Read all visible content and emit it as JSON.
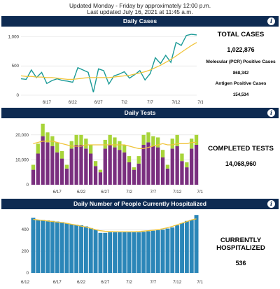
{
  "header": {
    "note_line1": "Updated Monday - Friday by approximately 12:00 p.m.",
    "note_line2": "Last updated July 16, 2021 at 11:45 a.m."
  },
  "colors": {
    "header_bg": "#0e2b52",
    "line_teal": "#1a9a96",
    "avg_yellow": "#f0c43a",
    "bar_purple": "#7a2f7f",
    "bar_green": "#a7d439",
    "bar_blue": "#2b86b8"
  },
  "panels": {
    "cases": {
      "title": "Daily Cases",
      "info_icon": "info-icon",
      "total_label": "TOTAL CASES",
      "total_value": "1,022,876",
      "pcr_label": "Molecular (PCR) Positive Cases",
      "pcr_value": "868,342",
      "antigen_label": "Antigen Positive Cases",
      "antigen_value": "154,534"
    },
    "tests": {
      "title": "Daily Tests",
      "info_icon": "info-icon",
      "label": "COMPLETED TESTS",
      "value": "14,068,960"
    },
    "hosp": {
      "title": "Daily Number of People Currently Hospitalized",
      "info_icon": "info-icon",
      "label_line1": "CURRENTLY",
      "label_line2": "HOSPITALIZED",
      "value": "536"
    }
  },
  "chart_data": [
    {
      "type": "line",
      "x": [
        "6/12",
        "6/13",
        "6/14",
        "6/15",
        "6/16",
        "6/17",
        "6/18",
        "6/19",
        "6/20",
        "6/21",
        "6/22",
        "6/23",
        "6/24",
        "6/25",
        "6/26",
        "6/27",
        "6/28",
        "6/29",
        "6/30",
        "7/1",
        "7/2",
        "7/3",
        "7/4",
        "7/5",
        "7/6",
        "7/7",
        "7/8",
        "7/9",
        "7/10",
        "7/11",
        "7/12",
        "7/13",
        "7/14",
        "7/15",
        "7/16"
      ],
      "series": [
        {
          "values": [
            280,
            270,
            430,
            300,
            390,
            200,
            250,
            280,
            250,
            240,
            220,
            470,
            430,
            390,
            50,
            450,
            420,
            190,
            330,
            360,
            400,
            290,
            350,
            420,
            260,
            370,
            640,
            540,
            680,
            560,
            900,
            850,
            1020,
            1040,
            1030
          ]
        },
        {
          "values": [
            330,
            320,
            320,
            310,
            310,
            300,
            300,
            290,
            280,
            270,
            270,
            280,
            290,
            300,
            300,
            300,
            300,
            300,
            310,
            320,
            330,
            340,
            360,
            380,
            400,
            430,
            470,
            510,
            560,
            610,
            670,
            730,
            790,
            850,
            900
          ]
        }
      ],
      "x_ticks": [
        "6/17",
        "6/22",
        "6/27",
        "7/2",
        "7/7",
        "7/12",
        "7/17"
      ],
      "y_ticks": [
        0,
        500,
        1000
      ],
      "ylim": [
        0,
        1100
      ]
    },
    {
      "type": "bar",
      "x": [
        "6/12",
        "6/13",
        "6/14",
        "6/15",
        "6/16",
        "6/17",
        "6/18",
        "6/19",
        "6/20",
        "6/21",
        "6/22",
        "6/23",
        "6/24",
        "6/25",
        "6/26",
        "6/27",
        "6/28",
        "6/29",
        "6/30",
        "7/1",
        "7/2",
        "7/3",
        "7/4",
        "7/5",
        "7/6",
        "7/7",
        "7/8",
        "7/9",
        "7/10",
        "7/11",
        "7/12",
        "7/13",
        "7/14",
        "7/15",
        "7/16"
      ],
      "series": [
        {
          "values": [
            6000,
            12500,
            19500,
            17000,
            15500,
            13000,
            10500,
            6500,
            14500,
            16000,
            16000,
            14500,
            12500,
            7500,
            5000,
            14500,
            16000,
            15000,
            14000,
            13000,
            9000,
            6000,
            8500,
            16000,
            17000,
            15500,
            15000,
            11000,
            6500,
            14500,
            15500,
            9500,
            7000,
            14500,
            16000
          ]
        },
        {
          "values": [
            2000,
            4000,
            5000,
            4000,
            4000,
            4000,
            3000,
            1500,
            3000,
            4000,
            4000,
            4000,
            3500,
            2000,
            1000,
            3500,
            4000,
            4000,
            3500,
            3000,
            2500,
            1000,
            3000,
            4000,
            4000,
            4000,
            4000,
            3000,
            1500,
            4000,
            4500,
            3000,
            2000,
            4000,
            4000
          ]
        },
        {
          "values": [
            16500,
            17000,
            17500,
            17500,
            17500,
            17000,
            16500,
            16000,
            15500,
            15500,
            15500,
            16000,
            16000,
            16000,
            16000,
            16000,
            16000,
            16000,
            16000,
            16000,
            15500,
            15000,
            14500,
            14500,
            15000,
            15500,
            16000,
            16500,
            16000,
            16000,
            16500,
            16500,
            16500,
            17000,
            17000
          ]
        }
      ],
      "x_ticks": [
        "6/17",
        "6/22",
        "6/27",
        "7/2",
        "7/7",
        "7/12",
        "7/17"
      ],
      "y_ticks": [
        0,
        10000,
        20000
      ],
      "y_tick_labels": [
        "0",
        "10,000",
        "20,000"
      ],
      "ylim": [
        0,
        25000
      ]
    },
    {
      "type": "bar",
      "x": [
        "6/12",
        "6/13",
        "6/14",
        "6/15",
        "6/16",
        "6/17",
        "6/18",
        "6/19",
        "6/20",
        "6/21",
        "6/22",
        "6/23",
        "6/24",
        "6/25",
        "6/26",
        "6/27",
        "6/28",
        "6/29",
        "6/30",
        "7/1",
        "7/2",
        "7/3",
        "7/4",
        "7/5",
        "7/6",
        "7/7",
        "7/8",
        "7/9",
        "7/10",
        "7/11",
        "7/12",
        "7/13",
        "7/14",
        "7/15",
        "7/16"
      ],
      "series": [
        {
          "values": [
            510,
            490,
            490,
            485,
            480,
            475,
            470,
            460,
            450,
            445,
            440,
            430,
            415,
            400,
            370,
            370,
            375,
            375,
            375,
            375,
            375,
            375,
            375,
            380,
            385,
            390,
            395,
            400,
            410,
            420,
            440,
            460,
            480,
            490,
            536
          ]
        },
        {
          "values": [
            495,
            490,
            485,
            480,
            475,
            470,
            465,
            458,
            450,
            442,
            433,
            424,
            412,
            400,
            390,
            385,
            383,
            382,
            381,
            380,
            380,
            381,
            383,
            386,
            390,
            395,
            400,
            408,
            418,
            430,
            445,
            460,
            475,
            490,
            500
          ]
        }
      ],
      "x_ticks": [
        "6/12",
        "6/17",
        "6/22",
        "6/27",
        "7/2",
        "7/7",
        "7/12",
        "7/17"
      ],
      "y_ticks": [
        0,
        200,
        400
      ],
      "ylim": [
        0,
        550
      ]
    }
  ]
}
